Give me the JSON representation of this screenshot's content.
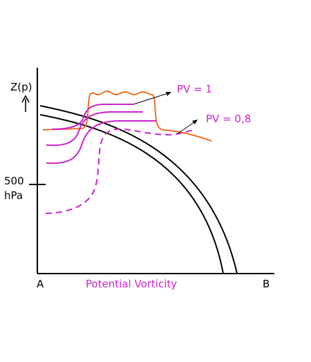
{
  "labels": {
    "y_axis": "Z(p)",
    "pressure_value": "500",
    "pressure_unit": "hPa",
    "x_start": "A",
    "x_end": "B",
    "x_axis": "Potential Vorticity",
    "pv1": "PV = 1",
    "pv08": "PV = 0,8"
  },
  "colors": {
    "axis": "#000000",
    "orange": "#f07020",
    "magenta": "#cc22cc"
  }
}
